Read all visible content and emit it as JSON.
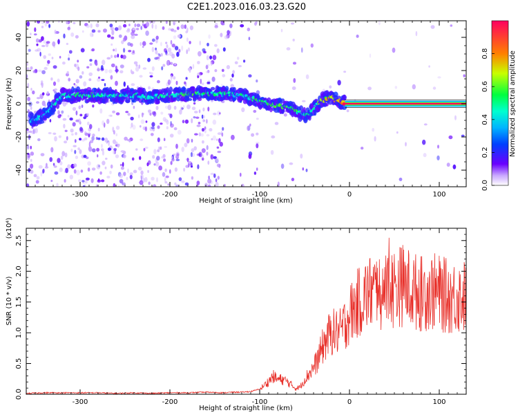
{
  "title": "C2E1.2023.016.03.23.G20",
  "chart_data": [
    {
      "type": "heatmap",
      "xlabel": "Height of straight line (km)",
      "ylabel": "Frequency (Hz)",
      "xlim": [
        -360,
        130
      ],
      "ylim": [
        -50,
        50
      ],
      "xticks": [
        -300,
        -200,
        -100,
        0,
        100
      ],
      "yticks": [
        -40,
        -20,
        0,
        20,
        40
      ],
      "colorbar": {
        "label": "Normalized spectral amplitude",
        "range": [
          0.0,
          1.0
        ],
        "ticks": [
          "0.0",
          "0.2",
          "0.4",
          "0.6",
          "0.8"
        ],
        "colors": [
          "#ffffff",
          "#6a00ff",
          "#0040ff",
          "#00d0ff",
          "#00ff40",
          "#c8ff00",
          "#ff8000",
          "#ff0060"
        ]
      },
      "ridge": {
        "x": [
          -355,
          -340,
          -320,
          -300,
          -280,
          -260,
          -240,
          -220,
          -200,
          -180,
          -160,
          -140,
          -120,
          -100,
          -90,
          -80,
          -70,
          -60,
          -50,
          -45,
          -40,
          -35,
          -30,
          -25,
          -20,
          -15,
          -10,
          -5,
          0,
          20,
          50,
          100,
          130
        ],
        "y": [
          -10,
          -7,
          5,
          5,
          5,
          5,
          5,
          4,
          5,
          6,
          6,
          6,
          5,
          2,
          0,
          -1,
          -2,
          -4,
          -7,
          -6,
          -3,
          0,
          2,
          3,
          4,
          2,
          1,
          0.5,
          0,
          0,
          0,
          0,
          0
        ],
        "amplitude": [
          0.45,
          0.4,
          0.45,
          0.5,
          0.5,
          0.45,
          0.5,
          0.45,
          0.5,
          0.55,
          0.55,
          0.5,
          0.5,
          0.55,
          0.55,
          0.6,
          0.55,
          0.55,
          0.5,
          0.5,
          0.55,
          0.6,
          0.65,
          0.7,
          0.75,
          0.85,
          0.9,
          0.95,
          1.0,
          1.0,
          1.0,
          1.0,
          1.0
        ]
      }
    },
    {
      "type": "line",
      "xlabel": "Height of straight line (km)",
      "ylabel": "SNR (10 * v/v)",
      "multiplier_label": "(x10⁴)",
      "xlim": [
        -360,
        130
      ],
      "ylim": [
        0,
        2.7
      ],
      "xticks": [
        -300,
        -200,
        -100,
        0,
        100
      ],
      "yticks": [
        "0.0",
        "0.5",
        "1.0",
        "1.5",
        "2.0",
        "2.5"
      ],
      "series": [
        {
          "color": "#e8302a",
          "x": [
            -360,
            -340,
            -320,
            -300,
            -280,
            -260,
            -240,
            -220,
            -200,
            -180,
            -160,
            -140,
            -130,
            -120,
            -110,
            -100,
            -95,
            -90,
            -85,
            -80,
            -75,
            -70,
            -65,
            -60,
            -55,
            -50,
            -45,
            -40,
            -35,
            -30,
            -25,
            -20,
            -15,
            -10,
            -5,
            0,
            10,
            20,
            30,
            40,
            50,
            60,
            70,
            80,
            90,
            100,
            110,
            120,
            130
          ],
          "y": [
            0.01,
            0.02,
            0.02,
            0.02,
            0.02,
            0.01,
            0.02,
            0.01,
            0.02,
            0.02,
            0.03,
            0.02,
            0.03,
            0.03,
            0.04,
            0.08,
            0.15,
            0.22,
            0.3,
            0.25,
            0.25,
            0.22,
            0.16,
            0.1,
            0.12,
            0.25,
            0.35,
            0.45,
            0.6,
            0.8,
            0.95,
            1.05,
            1.05,
            1.05,
            1.2,
            1.35,
            1.55,
            1.7,
            1.75,
            1.75,
            1.8,
            1.85,
            1.75,
            1.7,
            1.75,
            1.7,
            1.65,
            1.65,
            1.65
          ]
        }
      ]
    }
  ]
}
